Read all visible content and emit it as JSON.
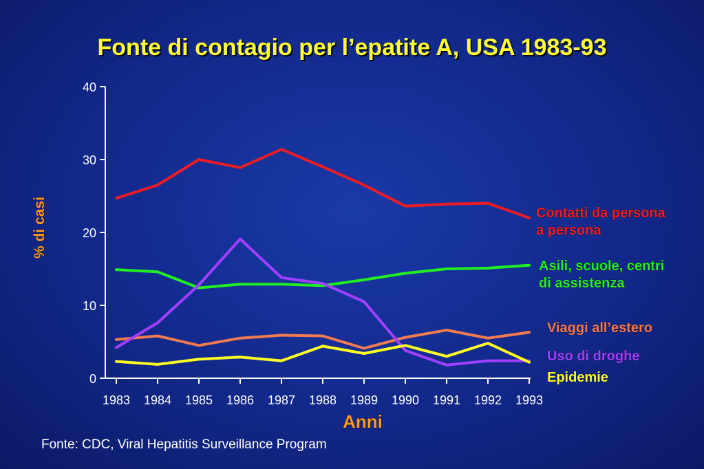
{
  "chart_data": {
    "type": "line",
    "title": "Fonte di contagio per l’epatite A, USA 1983-93",
    "xlabel": "Anni",
    "ylabel": "% di casi",
    "ylim": [
      0,
      40
    ],
    "yticks": [
      "0",
      "10",
      "20",
      "30",
      "40"
    ],
    "x": [
      "1983",
      "1984",
      "1985",
      "1986",
      "1987",
      "1988",
      "1989",
      "1990",
      "1991",
      "1992",
      "1993"
    ],
    "series": [
      {
        "name": "Contatti  da persona a persona",
        "label_lines": [
          "Contatti  da persona",
          "a persona"
        ],
        "color": "#ee1c24",
        "values": [
          24.7,
          26.5,
          30.0,
          28.9,
          31.4,
          29.0,
          26.5,
          23.6,
          23.9,
          24.0,
          22.0
        ]
      },
      {
        "name": "Asili, scuole, centri di assistenza",
        "label_lines": [
          "Asili, scuole, centri",
          "di assistenza"
        ],
        "color": "#22ee22",
        "values": [
          14.9,
          14.6,
          12.4,
          12.9,
          12.9,
          12.7,
          13.5,
          14.4,
          15.0,
          15.1,
          15.5
        ]
      },
      {
        "name": "Viaggi all’estero",
        "label_lines": [
          "Viaggi all’estero"
        ],
        "color": "#f47a50",
        "values": [
          5.3,
          5.8,
          4.5,
          5.5,
          5.9,
          5.8,
          4.1,
          5.6,
          6.6,
          5.5,
          6.3
        ]
      },
      {
        "name": "Uso di droghe",
        "label_lines": [
          "Uso di droghe"
        ],
        "color": "#a040ff",
        "values": [
          4.2,
          7.6,
          12.8,
          19.1,
          13.8,
          13.0,
          10.5,
          3.8,
          1.8,
          2.4,
          2.4
        ]
      },
      {
        "name": "Epidemie",
        "label_lines": [
          "Epidemie"
        ],
        "color": "#ffff22",
        "values": [
          2.3,
          1.9,
          2.6,
          2.9,
          2.4,
          4.4,
          3.4,
          4.5,
          3.0,
          4.8,
          2.2
        ]
      }
    ]
  },
  "footer": {
    "source": "Fonte: CDC, Viral Hepatitis Surveillance Program"
  }
}
